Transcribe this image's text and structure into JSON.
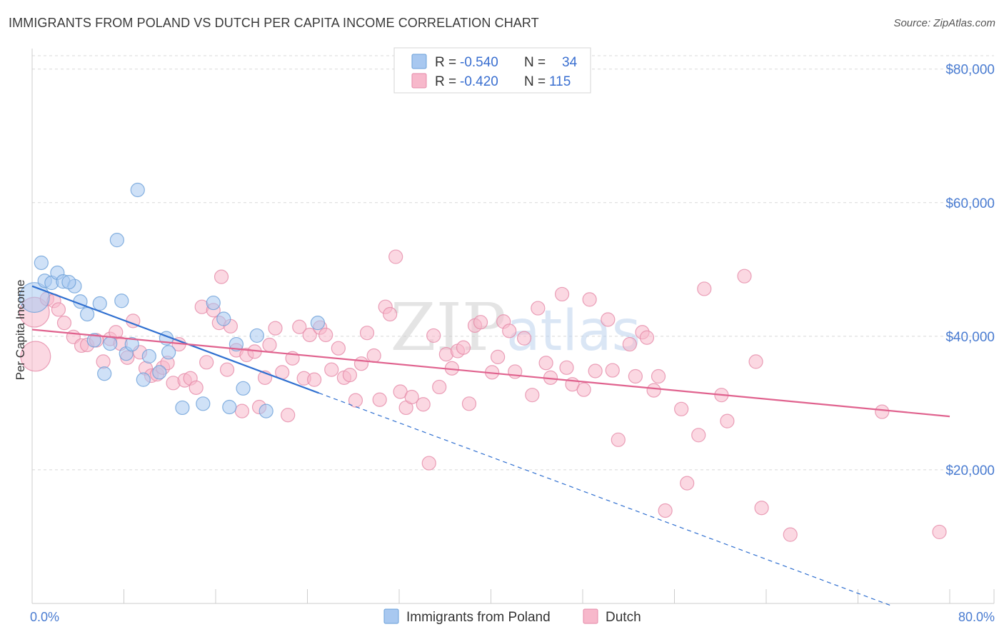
{
  "title": "IMMIGRANTS FROM POLAND VS DUTCH PER CAPITA INCOME CORRELATION CHART",
  "source": "Source: ZipAtlas.com",
  "watermark": "ZIPatlas",
  "colors": {
    "blue_fill": "#a8c8f0",
    "blue_stroke": "#6a9fd8",
    "blue_line": "#2f6fd0",
    "pink_fill": "#f7b8cb",
    "pink_stroke": "#e58aa8",
    "pink_line": "#e0628e",
    "tick_text": "#4a7cd1",
    "grid": "#d8d8d8"
  },
  "chart_data": {
    "type": "scatter",
    "title": "IMMIGRANTS FROM POLAND VS DUTCH PER CAPITA INCOME CORRELATION CHART",
    "xlabel": "",
    "ylabel": "Per Capita Income",
    "xlim": [
      0,
      80
    ],
    "ylim": [
      0,
      82000
    ],
    "x_tick_labels": [
      "0.0%",
      "80.0%"
    ],
    "y_ticks": [
      20000,
      40000,
      60000,
      80000
    ],
    "y_tick_labels": [
      "$20,000",
      "$40,000",
      "$60,000",
      "$80,000"
    ],
    "legend": {
      "r_prefix": "R = ",
      "n_prefix": "N = ",
      "entries": [
        {
          "r": "-0.540",
          "n": "34"
        },
        {
          "r": "-0.420",
          "n": "115"
        }
      ]
    },
    "series": [
      {
        "name": "Immigrants from Poland",
        "color": "blue",
        "trend": {
          "x0": 0,
          "y0": 47500,
          "x1": 25,
          "y1": 31500,
          "dash_to_x": 75,
          "dash_to_y": -400
        },
        "points": [
          [
            0.2,
            45800,
            2.2
          ],
          [
            0.8,
            51000,
            1
          ],
          [
            1.1,
            48300,
            1
          ],
          [
            1.7,
            48000,
            1
          ],
          [
            2.2,
            49500,
            1
          ],
          [
            2.7,
            48200,
            1
          ],
          [
            3.7,
            47500,
            1
          ],
          [
            4.2,
            45200,
            1
          ],
          [
            4.8,
            43300,
            1
          ],
          [
            5.4,
            39400,
            1
          ],
          [
            5.9,
            44900,
            1
          ],
          [
            6.3,
            34400,
            1
          ],
          [
            6.8,
            38900,
            1
          ],
          [
            7.4,
            54400,
            1
          ],
          [
            7.8,
            45300,
            1
          ],
          [
            8.2,
            37400,
            1
          ],
          [
            8.7,
            38800,
            1
          ],
          [
            9.2,
            61900,
            1
          ],
          [
            9.7,
            33500,
            1
          ],
          [
            10.2,
            37000,
            1
          ],
          [
            11.1,
            34600,
            1
          ],
          [
            11.7,
            39700,
            1
          ],
          [
            11.9,
            37600,
            1
          ],
          [
            13.1,
            29300,
            1
          ],
          [
            14.9,
            29900,
            1
          ],
          [
            15.8,
            45000,
            1
          ],
          [
            16.7,
            42600,
            1
          ],
          [
            17.2,
            29400,
            1
          ],
          [
            17.8,
            38800,
            1
          ],
          [
            18.4,
            32200,
            1
          ],
          [
            19.6,
            40100,
            1
          ],
          [
            20.4,
            28800,
            1
          ],
          [
            24.9,
            42000,
            1
          ],
          [
            3.2,
            48100,
            1
          ]
        ]
      },
      {
        "name": "Dutch",
        "color": "pink",
        "trend": {
          "x0": 0,
          "y0": 41000,
          "x1": 80,
          "y1": 28000
        },
        "points": [
          [
            0.2,
            43600,
            2.2
          ],
          [
            0.3,
            37000,
            2.2
          ],
          [
            1.3,
            45600,
            1
          ],
          [
            1.9,
            45300,
            1
          ],
          [
            2.3,
            44000,
            1
          ],
          [
            2.8,
            42000,
            1
          ],
          [
            3.6,
            39900,
            1
          ],
          [
            4.3,
            38600,
            1
          ],
          [
            4.8,
            38700,
            1
          ],
          [
            5.6,
            39400,
            1
          ],
          [
            6.2,
            36200,
            1
          ],
          [
            6.8,
            39600,
            1
          ],
          [
            7.3,
            40600,
            1
          ],
          [
            7.7,
            38900,
            1
          ],
          [
            8.3,
            36800,
            1
          ],
          [
            8.8,
            42300,
            1
          ],
          [
            9.4,
            37600,
            1
          ],
          [
            9.9,
            35200,
            1
          ],
          [
            10.4,
            34100,
            1
          ],
          [
            10.9,
            34300,
            1
          ],
          [
            11.4,
            35300,
            1
          ],
          [
            11.8,
            36000,
            1
          ],
          [
            12.3,
            33000,
            1
          ],
          [
            12.8,
            38800,
            1
          ],
          [
            13.3,
            33400,
            1
          ],
          [
            13.8,
            33700,
            1
          ],
          [
            14.3,
            32300,
            1
          ],
          [
            14.8,
            44400,
            1
          ],
          [
            15.2,
            36100,
            1
          ],
          [
            15.8,
            43900,
            1
          ],
          [
            16.3,
            42000,
            1
          ],
          [
            16.5,
            48900,
            1
          ],
          [
            17.0,
            35000,
            1
          ],
          [
            17.3,
            41500,
            1
          ],
          [
            17.8,
            37900,
            1
          ],
          [
            18.3,
            28800,
            1
          ],
          [
            18.7,
            37200,
            1
          ],
          [
            19.4,
            37700,
            1
          ],
          [
            19.8,
            29400,
            1
          ],
          [
            20.3,
            33800,
            1
          ],
          [
            20.7,
            38700,
            1
          ],
          [
            21.2,
            41200,
            1
          ],
          [
            21.8,
            34600,
            1
          ],
          [
            22.3,
            28200,
            1
          ],
          [
            22.7,
            36700,
            1
          ],
          [
            23.3,
            41400,
            1
          ],
          [
            23.7,
            33700,
            1
          ],
          [
            24.2,
            40200,
            1
          ],
          [
            24.6,
            33500,
            1
          ],
          [
            25.1,
            41300,
            1
          ],
          [
            25.6,
            40200,
            1
          ],
          [
            26.1,
            35000,
            1
          ],
          [
            26.7,
            38200,
            1
          ],
          [
            27.2,
            33800,
            1
          ],
          [
            27.7,
            34200,
            1
          ],
          [
            28.2,
            30400,
            1
          ],
          [
            28.7,
            35900,
            1
          ],
          [
            29.2,
            40500,
            1
          ],
          [
            29.8,
            37100,
            1
          ],
          [
            30.3,
            30500,
            1
          ],
          [
            30.8,
            44400,
            1
          ],
          [
            31.2,
            43300,
            1
          ],
          [
            31.7,
            51900,
            1
          ],
          [
            32.1,
            31700,
            1
          ],
          [
            32.6,
            29300,
            1
          ],
          [
            33.1,
            30900,
            1
          ],
          [
            34.1,
            29800,
            1
          ],
          [
            34.6,
            21000,
            1
          ],
          [
            35.0,
            40100,
            1
          ],
          [
            35.5,
            32400,
            1
          ],
          [
            36.1,
            37300,
            1
          ],
          [
            36.6,
            35200,
            1
          ],
          [
            37.1,
            37800,
            1
          ],
          [
            37.6,
            38300,
            1
          ],
          [
            38.1,
            29900,
            1
          ],
          [
            38.6,
            41600,
            1
          ],
          [
            39.1,
            42100,
            1
          ],
          [
            40.1,
            34600,
            1
          ],
          [
            40.6,
            36900,
            1
          ],
          [
            41.1,
            42200,
            1
          ],
          [
            41.6,
            40800,
            1
          ],
          [
            42.1,
            34700,
            1
          ],
          [
            42.9,
            39700,
            1
          ],
          [
            43.6,
            31200,
            1
          ],
          [
            44.1,
            44200,
            1
          ],
          [
            44.8,
            36000,
            1
          ],
          [
            45.2,
            33800,
            1
          ],
          [
            46.2,
            46300,
            1
          ],
          [
            46.6,
            35300,
            1
          ],
          [
            47.1,
            32800,
            1
          ],
          [
            48.1,
            32000,
            1
          ],
          [
            48.6,
            45500,
            1
          ],
          [
            49.1,
            34800,
            1
          ],
          [
            50.2,
            42500,
            1
          ],
          [
            50.6,
            34900,
            1
          ],
          [
            51.1,
            24500,
            1
          ],
          [
            52.1,
            38800,
            1
          ],
          [
            52.6,
            34000,
            1
          ],
          [
            53.2,
            40600,
            1
          ],
          [
            53.6,
            39800,
            1
          ],
          [
            54.2,
            31900,
            1
          ],
          [
            54.6,
            34000,
            1
          ],
          [
            55.2,
            13900,
            1
          ],
          [
            56.6,
            29100,
            1
          ],
          [
            57.1,
            18000,
            1
          ],
          [
            58.1,
            25200,
            1
          ],
          [
            58.6,
            47100,
            1
          ],
          [
            60.1,
            31200,
            1
          ],
          [
            60.6,
            27300,
            1
          ],
          [
            62.1,
            49000,
            1
          ],
          [
            63.1,
            36200,
            1
          ],
          [
            63.6,
            14300,
            1
          ],
          [
            66.1,
            10300,
            1
          ],
          [
            74.1,
            28700,
            1
          ],
          [
            79.1,
            10700,
            1
          ]
        ]
      }
    ]
  },
  "bottom_legend": {
    "items": [
      {
        "label": "Immigrants from Poland",
        "color": "blue"
      },
      {
        "label": "Dutch",
        "color": "pink"
      }
    ]
  }
}
